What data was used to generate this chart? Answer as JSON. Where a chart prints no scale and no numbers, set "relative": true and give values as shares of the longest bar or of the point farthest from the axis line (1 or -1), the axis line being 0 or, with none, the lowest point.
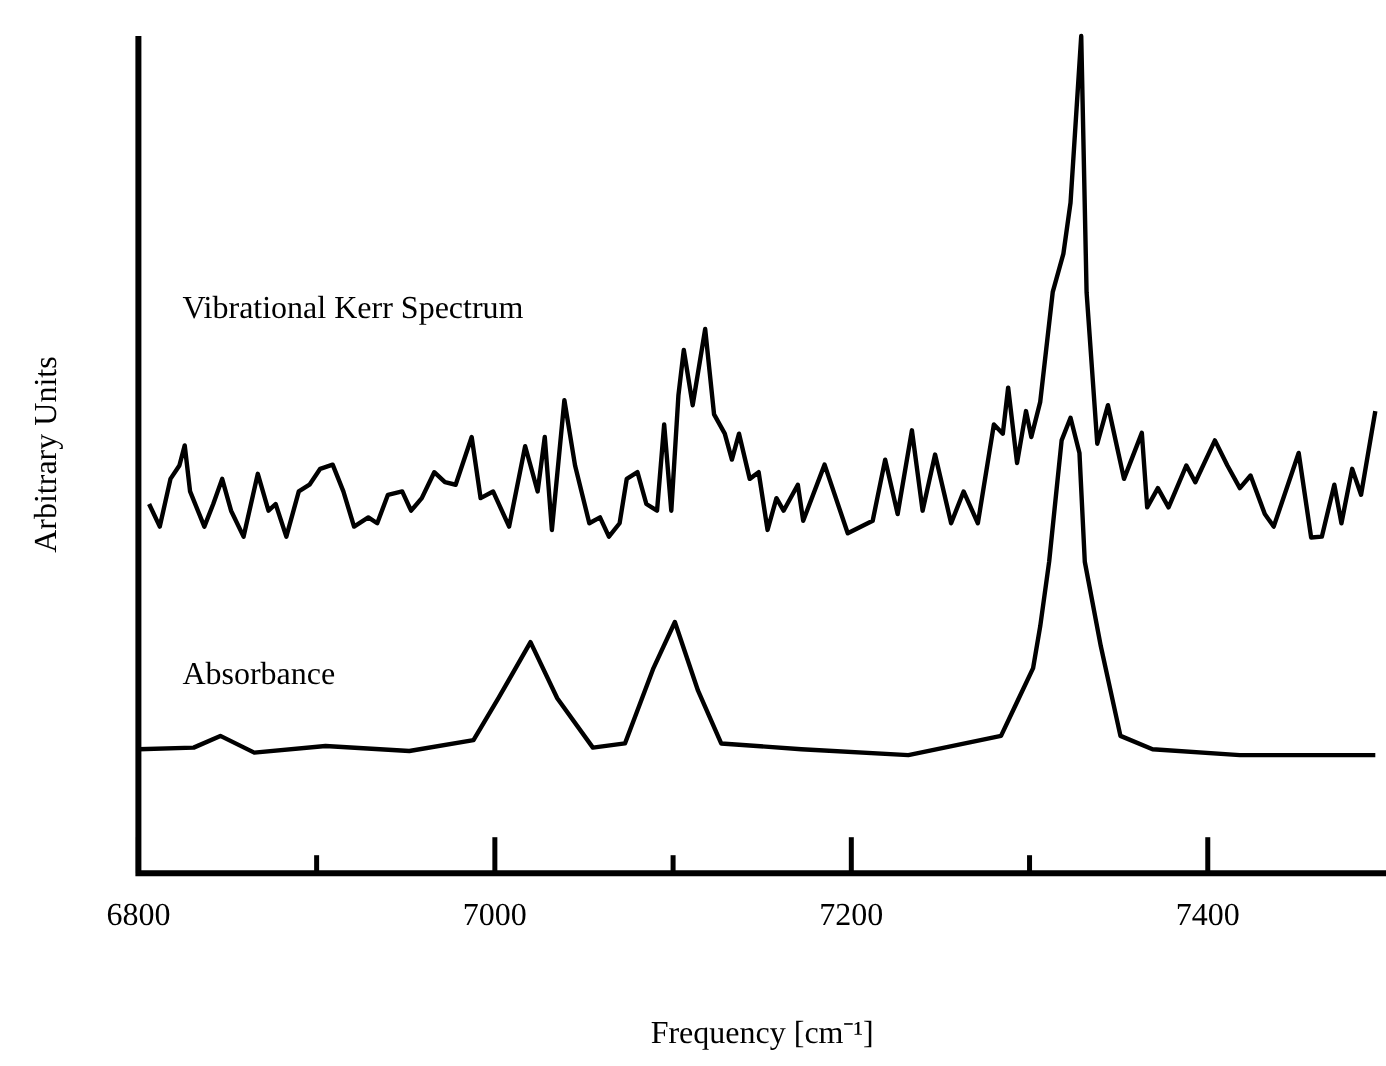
{
  "chart_data": {
    "type": "line",
    "xlabel": "Frequency [cm⁻¹]",
    "ylabel": "Arbitrary Units",
    "relative": true,
    "legend": false,
    "marker": "none",
    "line_style": "solid",
    "xlim": [
      6800,
      7500
    ],
    "xticks": [
      6800,
      {
        "value": 6900,
        "label": null
      },
      7000,
      {
        "value": 7100,
        "label": null
      },
      7200,
      {
        "value": 7300,
        "label": null
      },
      7400
    ],
    "series": [
      {
        "name": "Vibrational Kerr Spectrum",
        "color": "#000000",
        "x": [
          6806,
          6812,
          6818,
          6823,
          6826,
          6829,
          6837,
          6842,
          6847,
          6852,
          6859,
          6867,
          6873,
          6877,
          6883,
          6890,
          6896,
          6902,
          6909,
          6915,
          6921,
          6929,
          6934,
          6940,
          6948,
          6953,
          6959,
          6966,
          6972,
          6978,
          6987,
          6992,
          6999,
          7008,
          7017,
          7020,
          7024,
          7028,
          7032,
          7039,
          7045,
          7053,
          7059,
          7064,
          7070,
          7074,
          7080,
          7085,
          7091,
          7095,
          7099,
          7103,
          7106,
          7111,
          7118,
          7123,
          7129,
          7133,
          7137,
          7143,
          7148,
          7153,
          7158,
          7162,
          7170,
          7173,
          7185,
          7198,
          7212,
          7219,
          7226,
          7234,
          7240,
          7247,
          7256,
          7263,
          7271,
          7280,
          7285,
          7288,
          7293,
          7298,
          7301,
          7306,
          7313,
          7319,
          7323,
          7329,
          7332,
          7338,
          7344,
          7349,
          7353,
          7363,
          7366,
          7372,
          7378,
          7388,
          7393,
          7404,
          7411,
          7418,
          7424,
          7432,
          7437,
          7451,
          7458,
          7464,
          7471,
          7475,
          7481,
          7486,
          7494
        ],
        "values": [
          0.441,
          0.414,
          0.471,
          0.487,
          0.511,
          0.456,
          0.414,
          0.441,
          0.471,
          0.433,
          0.402,
          0.477,
          0.433,
          0.441,
          0.402,
          0.456,
          0.464,
          0.483,
          0.488,
          0.456,
          0.414,
          0.425,
          0.418,
          0.452,
          0.456,
          0.433,
          0.448,
          0.479,
          0.467,
          0.464,
          0.521,
          0.448,
          0.456,
          0.414,
          0.51,
          0.487,
          0.456,
          0.521,
          0.41,
          0.565,
          0.487,
          0.418,
          0.425,
          0.402,
          0.418,
          0.471,
          0.479,
          0.441,
          0.433,
          0.536,
          0.433,
          0.571,
          0.625,
          0.559,
          0.65,
          0.548,
          0.525,
          0.494,
          0.525,
          0.471,
          0.479,
          0.41,
          0.448,
          0.433,
          0.464,
          0.421,
          0.488,
          0.406,
          0.421,
          0.494,
          0.429,
          0.529,
          0.433,
          0.5,
          0.418,
          0.456,
          0.418,
          0.536,
          0.525,
          0.58,
          0.49,
          0.552,
          0.521,
          0.563,
          0.694,
          0.74,
          0.801,
          1,
          0.694,
          0.513,
          0.559,
          0.51,
          0.471,
          0.526,
          0.437,
          0.46,
          0.437,
          0.487,
          0.467,
          0.517,
          0.487,
          0.46,
          0.475,
          0.429,
          0.414,
          0.502,
          0.401,
          0.402,
          0.464,
          0.418,
          0.483,
          0.452,
          0.552
        ]
      },
      {
        "name": "Absorbance",
        "color": "#000000",
        "x": [
          6800,
          6831,
          6846,
          6865,
          6905,
          6952,
          6988,
          7002,
          7020,
          7035,
          7055,
          7073,
          7089,
          7101,
          7114,
          7127,
          7172,
          7232,
          7284,
          7302,
          7306,
          7311,
          7318,
          7323,
          7328,
          7331,
          7340,
          7351,
          7369,
          7418,
          7494
        ],
        "values": [
          0.148,
          0.15,
          0.164,
          0.144,
          0.152,
          0.146,
          0.159,
          0.209,
          0.276,
          0.209,
          0.15,
          0.155,
          0.245,
          0.3,
          0.218,
          0.155,
          0.148,
          0.141,
          0.164,
          0.245,
          0.295,
          0.372,
          0.517,
          0.544,
          0.502,
          0.372,
          0.271,
          0.164,
          0.148,
          0.141,
          0.141
        ]
      }
    ]
  }
}
